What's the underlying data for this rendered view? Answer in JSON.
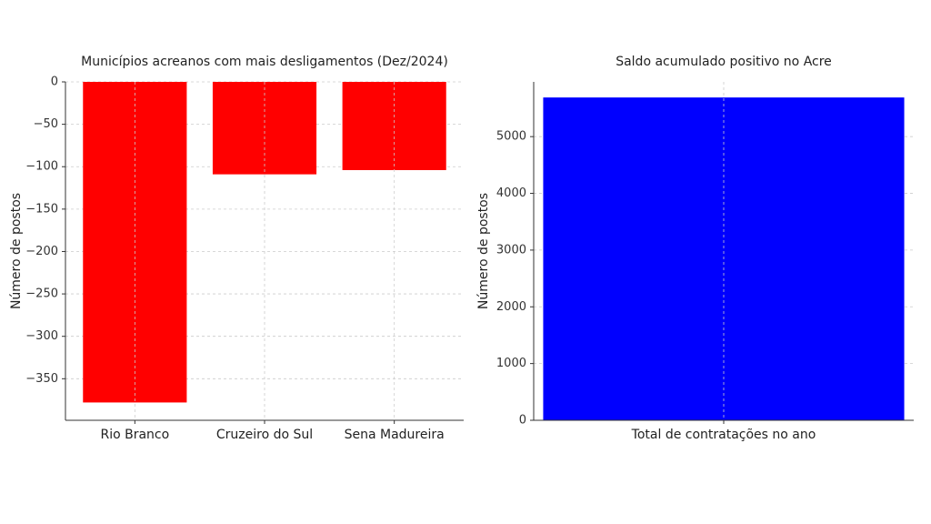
{
  "chart_data": [
    {
      "type": "bar",
      "title": "Municípios acreanos com mais desligamentos (Dez/2024)",
      "y_label": "Número de postos",
      "categories": [
        "Rio Branco",
        "Cruzeiro do Sul",
        "Sena Madureira"
      ],
      "values": [
        -378,
        -109,
        -104
      ],
      "color": "#ff0000",
      "ylim": [
        -399,
        0
      ],
      "yticks": [
        0,
        {
          "value": -50,
          "label": "−50"
        },
        {
          "value": -100,
          "label": "−100"
        },
        {
          "value": -150,
          "label": "−150"
        },
        {
          "value": -200,
          "label": "−200"
        },
        {
          "value": -250,
          "label": "−250"
        },
        {
          "value": -300,
          "label": "−300"
        },
        {
          "value": -350,
          "label": "−350"
        }
      ],
      "grid": true
    },
    {
      "type": "bar",
      "title": "Saldo acumulado positivo no Acre",
      "y_label": "Número de postos",
      "categories": [
        "Total de contratações no ano"
      ],
      "values": [
        5690
      ],
      "color": "#0000ff",
      "ylim": [
        0,
        5965
      ],
      "yticks": [
        0,
        1000,
        2000,
        3000,
        4000,
        5000
      ],
      "grid": true
    }
  ]
}
